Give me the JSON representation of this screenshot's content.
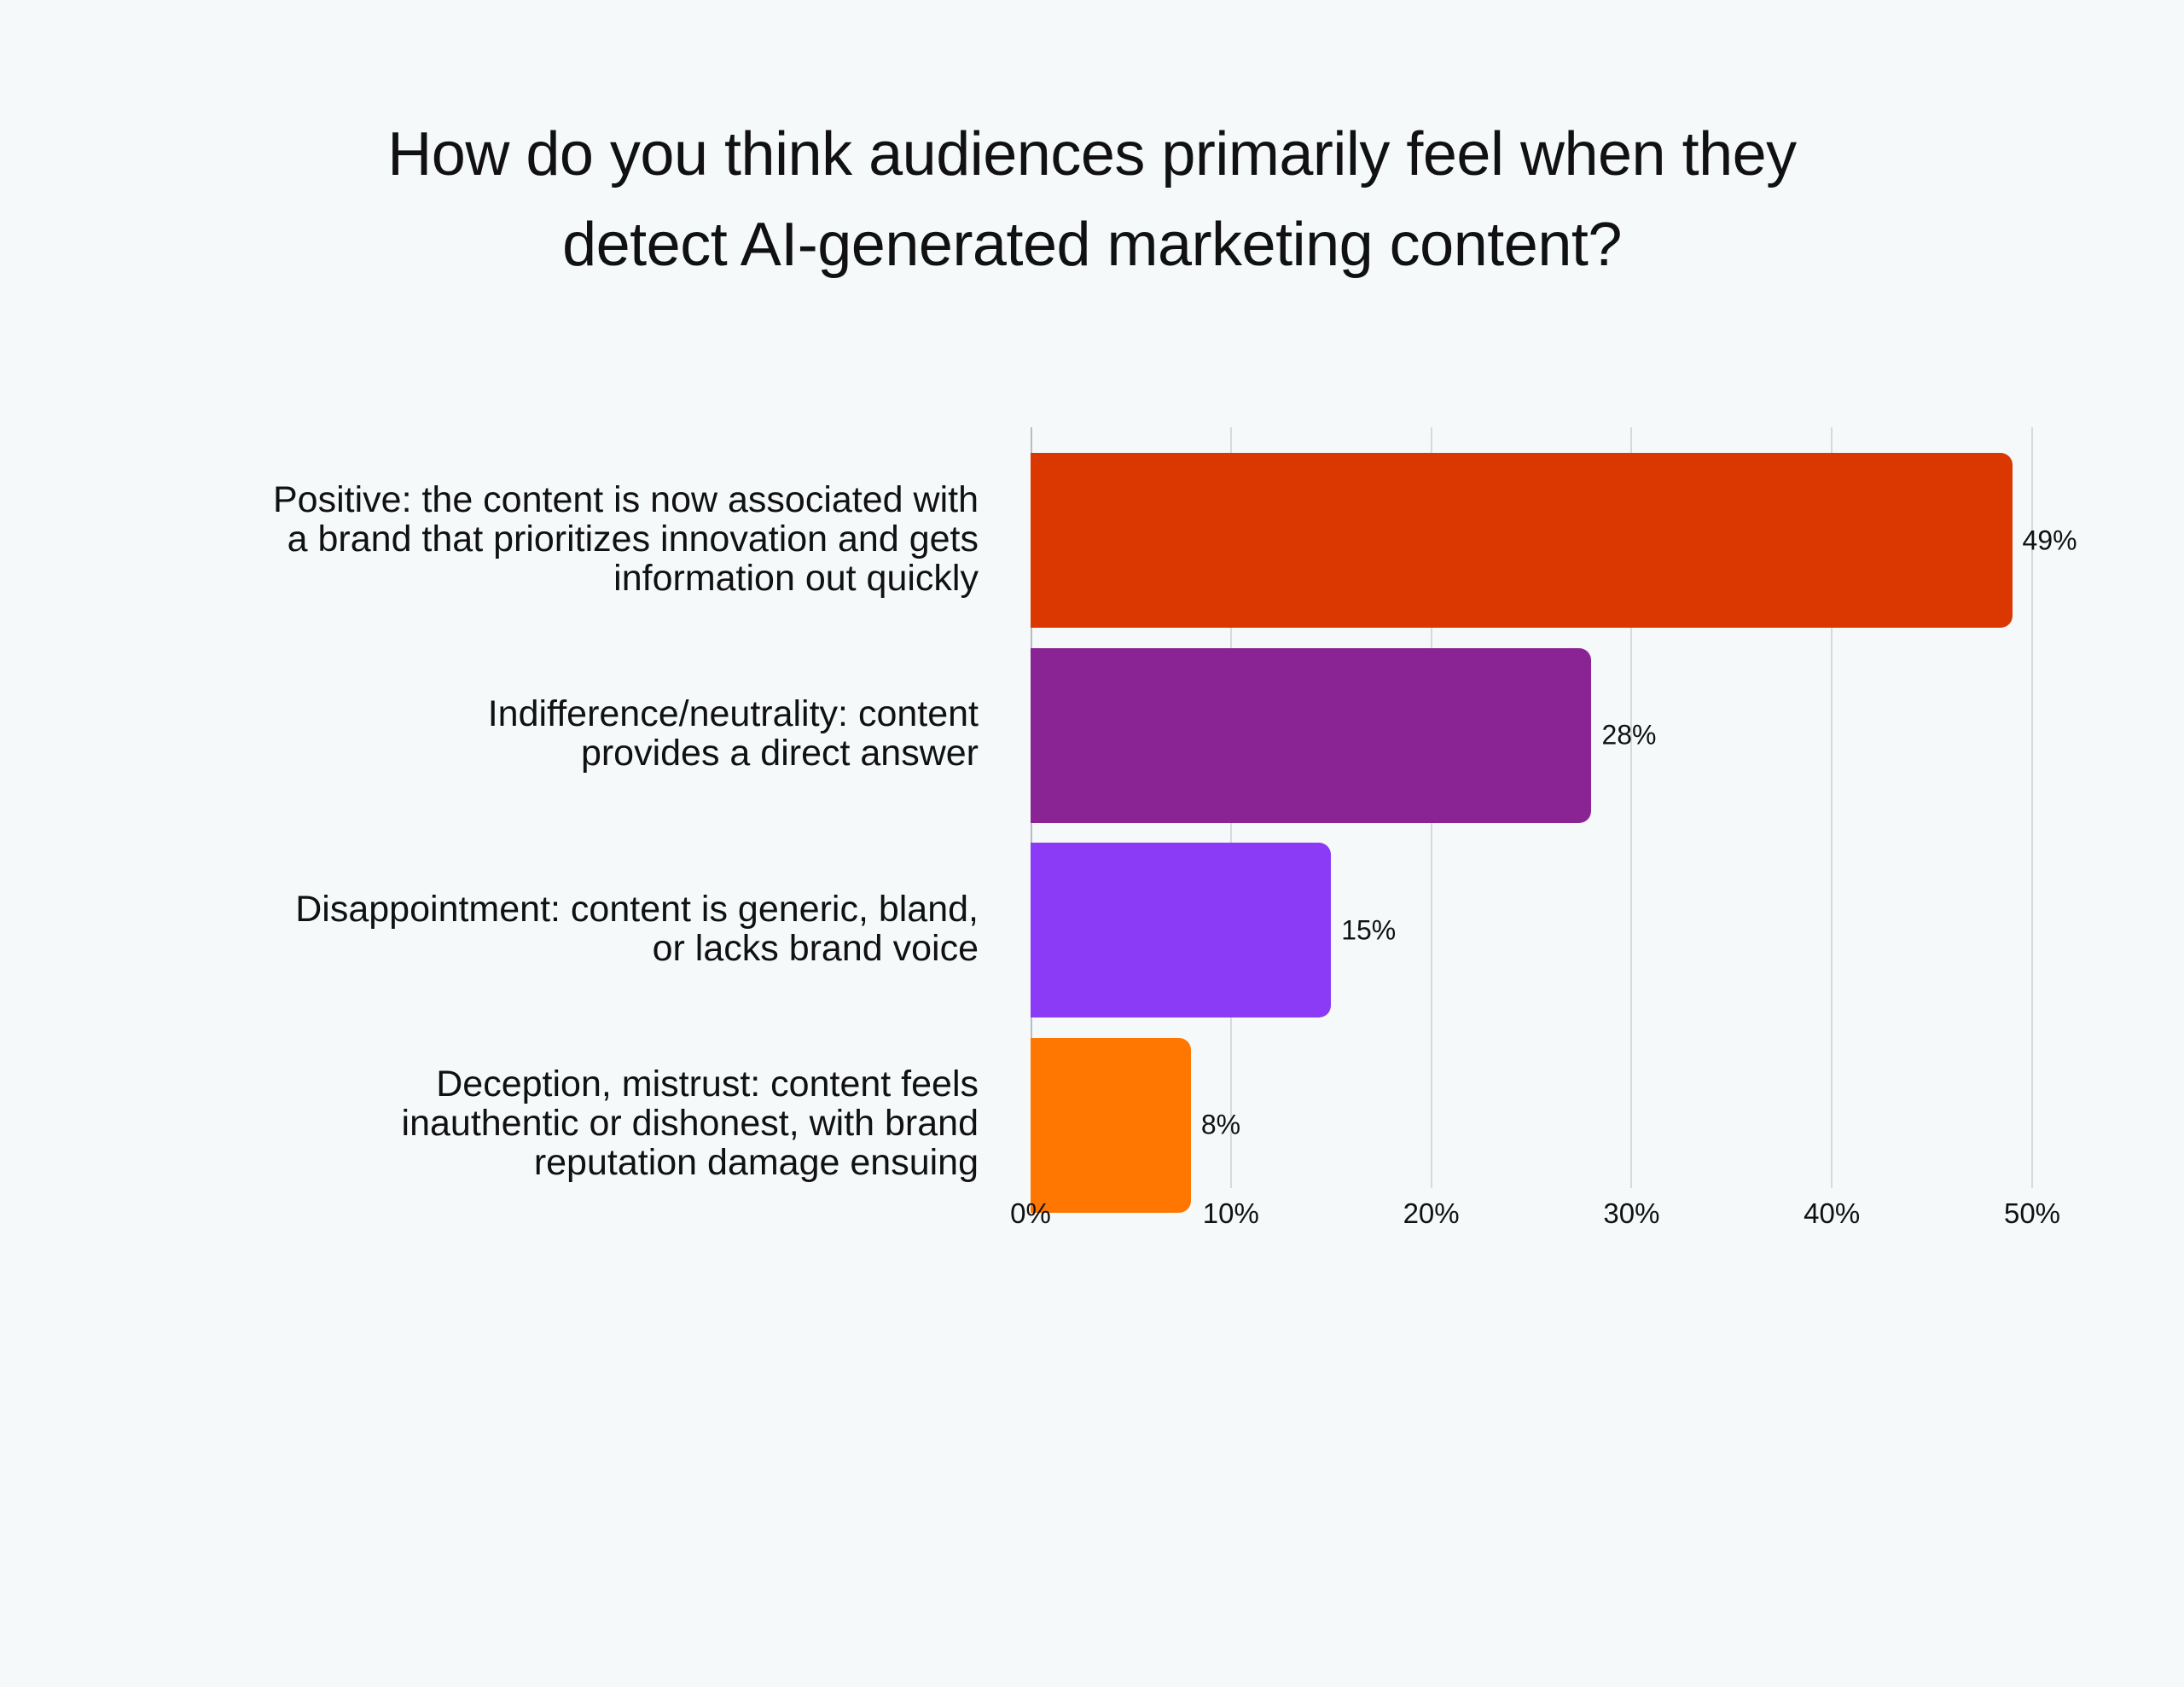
{
  "title": {
    "line1": "How do you think audiences primarily feel when they",
    "line2": "detect AI-generated marketing content?"
  },
  "chart_data": {
    "type": "bar",
    "orientation": "horizontal",
    "title": "How do you think audiences primarily feel when they detect AI-generated marketing content?",
    "categories": [
      "Positive: the content is now associated with a brand that prioritizes innovation and gets information out quickly",
      "Indifference/neutrality: content provides a direct answer",
      "Disappointment: content is generic, bland, or lacks brand voice",
      "Deception, mistrust: content feels inauthentic or dishonest, with brand reputation damage ensuing"
    ],
    "values": [
      49,
      28,
      15,
      8
    ],
    "value_labels": [
      "49%",
      "28%",
      "15%",
      "8%"
    ],
    "colors": [
      "#db3700",
      "#8a2393",
      "#8b3af5",
      "#ff7700"
    ],
    "xlabel": "",
    "ylabel": "",
    "xlim": [
      0,
      50
    ],
    "xticks": [
      "0%",
      "10%",
      "20%",
      "30%",
      "40%",
      "50%"
    ],
    "grid": true,
    "legend": "none"
  },
  "labels": [
    [
      "Positive: the content is now associated with",
      "a brand that prioritizes innovation and gets",
      "information out quickly"
    ],
    [
      "Indifference/neutrality: content",
      "provides a direct answer"
    ],
    [
      "Disappointment: content is generic, bland,",
      "or lacks brand voice"
    ],
    [
      "Deception, mistrust: content feels",
      "inauthentic or dishonest, with brand",
      "reputation damage ensuing"
    ]
  ]
}
